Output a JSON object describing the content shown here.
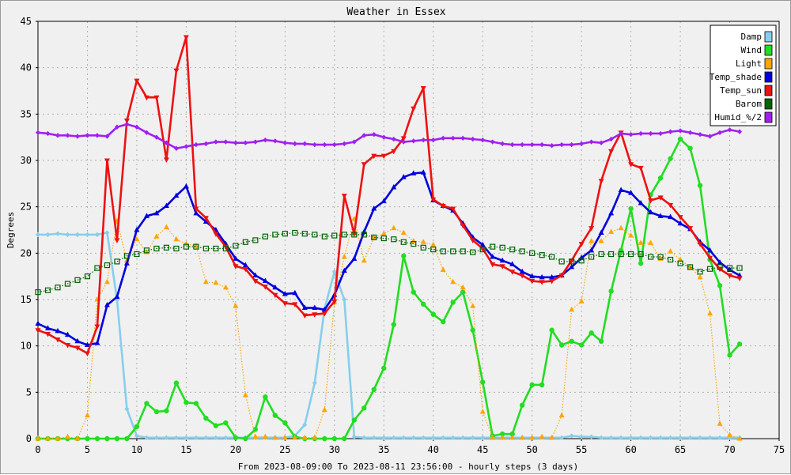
{
  "chart_data": {
    "type": "line",
    "title": "Weather in Essex",
    "xlabel": "From 2023-08-09:00 To 2023-08-11 23:56:00 - hourly steps (3 days)",
    "ylabel": "Degrees",
    "xlim": [
      0,
      75
    ],
    "ylim": [
      0,
      45
    ],
    "x_ticks": [
      0,
      5,
      10,
      15,
      20,
      25,
      30,
      35,
      40,
      45,
      50,
      55,
      60,
      65,
      70,
      75
    ],
    "y_ticks": [
      0,
      5,
      10,
      15,
      20,
      25,
      30,
      35,
      40,
      45
    ],
    "grid": true,
    "legend_position": "top-right",
    "series": [
      {
        "name": "Damp",
        "color": "#87ceeb",
        "marker": "diamond",
        "style": "solid",
        "values": [
          22.0,
          22.0,
          22.1,
          22.0,
          22.0,
          22.0,
          22.0,
          22.2,
          15.0,
          3.2,
          0.3,
          0.1,
          0.1,
          0.1,
          0.1,
          0.1,
          0.1,
          0.1,
          0.1,
          0.1,
          0.1,
          0.1,
          0.1,
          0.1,
          0.1,
          0.1,
          0.3,
          1.5,
          6.0,
          14.0,
          18.0,
          15.0,
          0.2,
          0.1,
          0.1,
          0.1,
          0.1,
          0.1,
          0.1,
          0.1,
          0.1,
          0.1,
          0.1,
          0.1,
          0.1,
          0.1,
          0.1,
          0.1,
          0.1,
          0.1,
          0.1,
          0.1,
          0.1,
          0.1,
          0.3,
          0.2,
          0.2,
          0.1,
          0.1,
          0.1,
          0.1,
          0.1,
          0.1,
          0.1,
          0.1,
          0.1,
          0.1,
          0.1,
          0.1,
          0.1,
          0.1,
          0.1
        ]
      },
      {
        "name": "Wind",
        "color": "#22dd22",
        "marker": "circle",
        "style": "solid",
        "values": [
          0.0,
          0.0,
          0.0,
          0.0,
          0.0,
          0.0,
          0.0,
          0.0,
          0.0,
          0.0,
          1.3,
          3.8,
          2.9,
          3.0,
          6.0,
          3.9,
          3.8,
          2.2,
          1.4,
          1.7,
          0.1,
          0.0,
          1.0,
          4.5,
          2.5,
          1.7,
          0.2,
          0.0,
          0.0,
          0.0,
          0.0,
          0.0,
          2.0,
          3.3,
          5.3,
          7.6,
          12.3,
          19.7,
          15.8,
          14.5,
          13.4,
          12.6,
          14.7,
          15.8,
          11.7,
          6.1,
          0.3,
          0.5,
          0.5,
          3.6,
          5.8,
          5.8,
          11.7,
          10.1,
          10.5,
          10.1,
          11.4,
          10.5,
          15.9,
          20.3,
          24.8,
          18.9,
          26.3,
          28.1,
          30.2,
          32.3,
          31.3,
          27.3,
          19.3,
          16.5,
          9.0,
          10.2
        ]
      },
      {
        "name": "Light",
        "color": "#ffa500",
        "marker": "triangle-up",
        "style": "dotted",
        "values": [
          0.0,
          0.0,
          0.0,
          0.2,
          0.0,
          2.5,
          15.0,
          16.9,
          23.5,
          19.2,
          21.5,
          20.1,
          21.8,
          22.8,
          21.5,
          21.0,
          20.8,
          16.9,
          16.8,
          16.3,
          14.3,
          4.7,
          0.2,
          0.2,
          0.1,
          0.1,
          0.1,
          0.1,
          0.1,
          3.1,
          14.7,
          19.6,
          23.7,
          19.2,
          21.7,
          22.1,
          22.7,
          22.2,
          21.3,
          21.2,
          20.9,
          18.2,
          16.9,
          16.3,
          14.3,
          2.9,
          0.1,
          0.1,
          0.1,
          0.1,
          0.1,
          0.2,
          0.1,
          2.5,
          13.9,
          14.8,
          21.3,
          21.3,
          22.3,
          22.7,
          21.9,
          21.1,
          21.1,
          19.4,
          20.2,
          19.3,
          18.5,
          17.4,
          13.5,
          1.6,
          0.4,
          0.0
        ]
      },
      {
        "name": "Temp_shade",
        "color": "#0000dd",
        "marker": "triangle-up",
        "style": "solid",
        "values": [
          12.4,
          11.9,
          11.6,
          11.2,
          10.5,
          10.1,
          10.3,
          14.4,
          15.3,
          18.9,
          22.5,
          24.0,
          24.3,
          25.1,
          26.2,
          27.2,
          24.3,
          23.4,
          22.5,
          21.0,
          19.4,
          18.7,
          17.6,
          17.0,
          16.3,
          15.6,
          15.7,
          14.1,
          14.1,
          13.9,
          15.5,
          18.1,
          19.4,
          22.3,
          24.8,
          25.6,
          27.1,
          28.2,
          28.6,
          28.7,
          25.7,
          25.1,
          24.6,
          23.2,
          21.7,
          20.9,
          19.6,
          19.2,
          18.8,
          18.0,
          17.5,
          17.4,
          17.4,
          17.6,
          18.5,
          19.5,
          20.3,
          22.2,
          24.3,
          26.8,
          26.5,
          25.4,
          24.4,
          24.0,
          23.9,
          23.2,
          22.6,
          21.2,
          20.3,
          19.0,
          18.2,
          17.6
        ]
      },
      {
        "name": "Temp_sun",
        "color": "#ee1111",
        "marker": "triangle-down",
        "style": "solid",
        "values": [
          11.7,
          11.3,
          10.7,
          10.1,
          9.8,
          9.2,
          12.1,
          30.0,
          21.4,
          34.3,
          38.6,
          36.8,
          36.8,
          30.1,
          39.7,
          43.3,
          24.8,
          23.8,
          22.1,
          20.7,
          18.6,
          18.3,
          17.0,
          16.4,
          15.5,
          14.6,
          14.5,
          13.3,
          13.4,
          13.5,
          14.8,
          26.2,
          22.1,
          29.6,
          30.5,
          30.5,
          31.0,
          32.4,
          35.6,
          37.8,
          25.8,
          25.1,
          24.8,
          23.0,
          21.4,
          20.5,
          18.8,
          18.6,
          18.0,
          17.6,
          17.0,
          16.9,
          17.0,
          17.6,
          19.2,
          21.0,
          22.7,
          27.8,
          31.0,
          33.0,
          29.6,
          29.2,
          25.7,
          26.0,
          25.2,
          23.9,
          22.7,
          21.0,
          19.5,
          18.3,
          17.6,
          17.3
        ]
      },
      {
        "name": "Barom",
        "color": "#006400",
        "marker": "square-open",
        "style": "dotted",
        "values": [
          15.8,
          16.0,
          16.3,
          16.7,
          17.1,
          17.5,
          18.4,
          18.7,
          19.1,
          19.7,
          19.9,
          20.3,
          20.5,
          20.6,
          20.5,
          20.7,
          20.7,
          20.5,
          20.5,
          20.5,
          20.8,
          21.2,
          21.4,
          21.8,
          22.0,
          22.1,
          22.2,
          22.1,
          22.0,
          21.8,
          21.9,
          22.0,
          22.0,
          22.0,
          21.7,
          21.6,
          21.5,
          21.2,
          21.0,
          20.6,
          20.4,
          20.2,
          20.2,
          20.2,
          20.1,
          20.4,
          20.7,
          20.6,
          20.4,
          20.2,
          20.0,
          19.8,
          19.6,
          19.1,
          19.1,
          19.2,
          19.6,
          19.9,
          19.9,
          19.9,
          19.9,
          19.9,
          19.6,
          19.6,
          19.3,
          18.9,
          18.5,
          18.0,
          18.3,
          18.5,
          18.4,
          18.4
        ]
      },
      {
        "name": "Humid_%/2",
        "color": "#a020f0",
        "marker": "diamond",
        "style": "solid",
        "values": [
          33.0,
          32.9,
          32.7,
          32.7,
          32.6,
          32.7,
          32.7,
          32.6,
          33.6,
          33.9,
          33.6,
          33.0,
          32.5,
          31.9,
          31.3,
          31.5,
          31.7,
          31.8,
          32.0,
          32.0,
          31.9,
          31.9,
          32.0,
          32.2,
          32.1,
          31.9,
          31.8,
          31.8,
          31.7,
          31.7,
          31.7,
          31.8,
          32.0,
          32.7,
          32.8,
          32.5,
          32.3,
          32.0,
          32.1,
          32.2,
          32.2,
          32.4,
          32.4,
          32.4,
          32.3,
          32.2,
          32.0,
          31.8,
          31.7,
          31.7,
          31.7,
          31.7,
          31.6,
          31.7,
          31.7,
          31.8,
          32.0,
          31.9,
          32.3,
          32.9,
          32.8,
          32.9,
          32.9,
          32.9,
          33.1,
          33.2,
          33.0,
          32.8,
          32.6,
          33.0,
          33.3,
          33.1
        ]
      }
    ]
  }
}
